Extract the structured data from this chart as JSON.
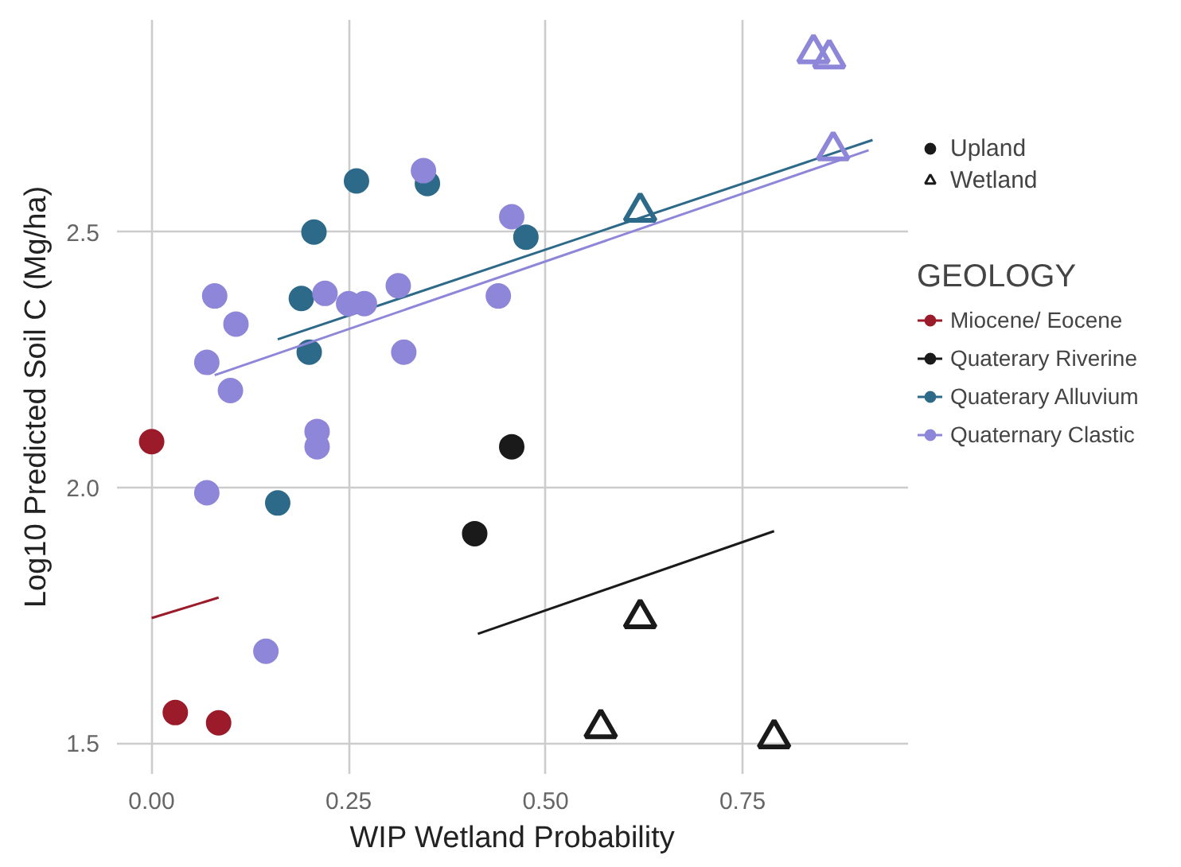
{
  "chart_data": {
    "type": "scatter",
    "xlabel": "WIP Wetland Probability",
    "ylabel": "Log10 Predicted Soil C (Mg/ha)",
    "legend_title": "GEOLOGY",
    "legend": "right",
    "grid": true,
    "xlim": [
      -0.044,
      0.96
    ],
    "ylim": [
      1.44,
      2.915
    ],
    "xticks": [
      {
        "value": 0,
        "label": "0.00"
      },
      0.25,
      {
        "value": 0.5,
        "label": "0.50"
      },
      0.75
    ],
    "yticks": [
      {
        "value": 1.5,
        "label": "1.5"
      },
      {
        "value": 2,
        "label": "2.0"
      },
      2.5
    ],
    "series": [
      {
        "marker": "circle",
        "color": "#9b1b2a",
        "x": [
          0,
          0.03,
          0.085
        ],
        "values": [
          2.09,
          1.56,
          1.54
        ]
      },
      {
        "type": "line",
        "name": "Miocene/ Eocene",
        "color": "#9b1b2a",
        "x": [
          0,
          0.085
        ],
        "values": [
          1.745,
          1.785
        ]
      },
      {
        "name": "Upland",
        "marker": "circle",
        "color": "#1a1a1a",
        "x": [
          0.457,
          0.41
        ],
        "values": [
          2.08,
          1.91
        ]
      },
      {
        "name": "Wetland",
        "marker": "triangle",
        "color": "#1a1a1a",
        "x": [
          0.62,
          0.57,
          0.79
        ],
        "values": [
          1.745,
          1.53,
          1.51
        ]
      },
      {
        "type": "line",
        "name": "Quaterary Riverine",
        "color": "#1a1a1a",
        "x": [
          0.414,
          0.79
        ],
        "values": [
          1.714,
          1.915
        ]
      },
      {
        "marker": "circle",
        "color": "#2d6a8a",
        "x": [
          0.26,
          0.35,
          0.206,
          0.475,
          0.19,
          0.2,
          0.16
        ],
        "values": [
          2.6,
          2.595,
          2.5,
          2.49,
          2.37,
          2.265,
          1.97
        ]
      },
      {
        "marker": "triangle",
        "color": "#2d6a8a",
        "x": [
          0.62
        ],
        "values": [
          2.54
        ]
      },
      {
        "type": "line",
        "name": "Quaterary Alluvium",
        "color": "#2d6a8a",
        "x": [
          0.16,
          0.915
        ],
        "values": [
          2.29,
          2.68
        ]
      },
      {
        "marker": "circle",
        "color": "#8e86d9",
        "x": [
          0.345,
          0.457,
          0.08,
          0.107,
          0.22,
          0.25,
          0.27,
          0.313,
          0.44,
          0.07,
          0.32,
          0.1,
          0.21,
          0.21,
          0.07,
          0.145
        ],
        "values": [
          2.62,
          2.53,
          2.375,
          2.32,
          2.38,
          2.36,
          2.36,
          2.395,
          2.375,
          2.245,
          2.265,
          2.19,
          2.11,
          2.08,
          1.99,
          1.68
        ]
      },
      {
        "marker": "triangle",
        "color": "#8e86d9",
        "x": [
          0.84,
          0.86,
          0.865
        ],
        "values": [
          2.85,
          2.84,
          2.66
        ]
      },
      {
        "type": "line",
        "name": "Quaternary Clastic",
        "color": "#8e86d9",
        "x": [
          0.08,
          0.91
        ],
        "values": [
          2.22,
          2.66
        ]
      }
    ]
  }
}
